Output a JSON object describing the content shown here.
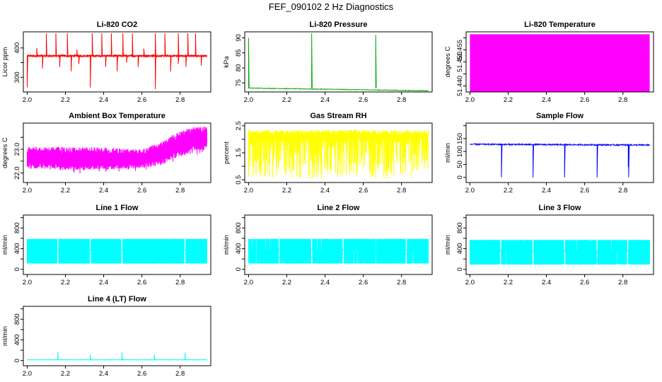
{
  "figure": {
    "title": "FEF_090102  2 Hz Diagnostics"
  },
  "chart_data": [
    {
      "type": "line",
      "title": "Li-820 CO2",
      "ylabel": "Licor ppm",
      "color": "#ff0000",
      "xlim": [
        1.98,
        2.96
      ],
      "ylim": [
        250,
        455
      ],
      "yticks": [
        300,
        350,
        400
      ],
      "yticklabels": [
        "300",
        "",
        "400"
      ],
      "pattern": {
        "kind": "spiky",
        "base": 373,
        "noise": 3,
        "n": 1200,
        "spikes_up": [
          [
            2.1,
            450
          ],
          [
            2.15,
            450
          ],
          [
            2.21,
            450
          ],
          [
            2.34,
            450
          ],
          [
            2.39,
            450
          ],
          [
            2.44,
            450
          ],
          [
            2.5,
            450
          ],
          [
            2.55,
            450
          ],
          [
            2.67,
            450
          ],
          [
            2.72,
            450
          ],
          [
            2.79,
            450
          ],
          [
            2.84,
            450
          ],
          [
            2.88,
            450
          ],
          [
            2.05,
            400
          ],
          [
            2.26,
            395
          ],
          [
            2.61,
            398
          ]
        ],
        "spikes_down": [
          [
            2.0,
            265
          ],
          [
            2.08,
            330
          ],
          [
            2.17,
            335
          ],
          [
            2.23,
            320
          ],
          [
            2.33,
            265
          ],
          [
            2.41,
            335
          ],
          [
            2.47,
            320
          ],
          [
            2.58,
            335
          ],
          [
            2.67,
            260
          ],
          [
            2.75,
            320
          ],
          [
            2.83,
            335
          ],
          [
            2.91,
            340
          ],
          [
            2.27,
            345
          ],
          [
            2.52,
            350
          ],
          [
            2.79,
            345
          ]
        ]
      }
    },
    {
      "type": "line",
      "title": "Li-820 Pressure",
      "ylabel": "kPa",
      "color": "#00aa00",
      "xlim": [
        1.98,
        2.96
      ],
      "ylim": [
        72,
        92
      ],
      "yticks": [
        75,
        80,
        85,
        90
      ],
      "yticklabels": [
        "75",
        "80",
        "85",
        "90"
      ],
      "pattern": {
        "kind": "spiky",
        "base": 73.3,
        "noise": 0.12,
        "n": 400,
        "drift": -0.9,
        "spikes_up": [
          [
            2.0,
            90
          ],
          [
            2.33,
            91.5
          ],
          [
            2.665,
            91
          ]
        ],
        "spikes_down": []
      }
    },
    {
      "type": "area",
      "title": "Li-820 Temperature",
      "ylabel": "degrees C",
      "color": "#ff00ff",
      "xlim": [
        1.98,
        2.96
      ],
      "ylim": [
        51.4375,
        51.4625
      ],
      "yticks": [
        51.44,
        51.445,
        51.45,
        51.455,
        51.46
      ],
      "yticklabels": [
        "51.440",
        "",
        "51.450",
        "51.455",
        ""
      ],
      "pattern": {
        "kind": "fill",
        "lo": 51.4375,
        "hi": 51.4615
      }
    },
    {
      "type": "line",
      "title": "Ambient Box Temperature",
      "ylabel": "degrees C",
      "color": "#ff00ff",
      "xlim": [
        1.98,
        2.96
      ],
      "ylim": [
        21.6,
        24.1
      ],
      "yticks": [
        22.0,
        22.5,
        23.0,
        23.5
      ],
      "yticklabels": [
        "22.0",
        "",
        "23.0",
        ""
      ],
      "pattern": {
        "kind": "band",
        "n": 1400,
        "env": [
          [
            2.0,
            22.2,
            23.1
          ],
          [
            2.3,
            22.1,
            23.1
          ],
          [
            2.6,
            22.2,
            23.0
          ],
          [
            2.7,
            22.3,
            23.3
          ],
          [
            2.76,
            22.6,
            23.6
          ],
          [
            2.85,
            22.8,
            23.9
          ],
          [
            2.94,
            23.0,
            24.0
          ]
        ]
      }
    },
    {
      "type": "line",
      "title": "Gas Stream RH",
      "ylabel": "percent",
      "color": "#ffff00",
      "xlim": [
        1.98,
        2.96
      ],
      "ylim": [
        0.4,
        2.6
      ],
      "yticks": [
        0.5,
        1.0,
        1.5,
        2.0,
        2.5
      ],
      "yticklabels": [
        "0.5",
        "",
        "1.5",
        "",
        "2.5"
      ],
      "pattern": {
        "kind": "rh",
        "n": 1500,
        "top": 2.1,
        "top_hi": 2.35,
        "dips_min": 0.55
      }
    },
    {
      "type": "line",
      "title": "Sample Flow",
      "ylabel": "ml/min",
      "color": "#0000ff",
      "xlim": [
        1.98,
        2.96
      ],
      "ylim": [
        -20,
        210
      ],
      "yticks": [
        0,
        50,
        100,
        150,
        200
      ],
      "yticklabels": [
        "0",
        "50",
        "100",
        "150",
        ""
      ],
      "pattern": {
        "kind": "spiky",
        "base": 128,
        "noise": 2.5,
        "n": 600,
        "drift": -3,
        "spikes_up": [],
        "spikes_down": [
          [
            2.165,
            0
          ],
          [
            2.33,
            0
          ],
          [
            2.495,
            0
          ],
          [
            2.665,
            0
          ],
          [
            2.83,
            0
          ],
          [
            2.828,
            40
          ]
        ]
      }
    },
    {
      "type": "line",
      "title": "Line 1 Flow",
      "ylabel": "ml/min",
      "color": "#00ffff",
      "xlim": [
        1.98,
        2.96
      ],
      "ylim": [
        -100,
        1050
      ],
      "yticks": [
        0,
        200,
        400,
        600,
        800,
        1000
      ],
      "yticklabels": [
        "0",
        "",
        "400",
        "",
        "800",
        ""
      ],
      "pattern": {
        "kind": "square",
        "lo": 110,
        "hi": 590,
        "n": 1400,
        "gaps": [
          [
            2.16,
            0.008
          ],
          [
            2.33,
            0.008
          ],
          [
            2.495,
            0.008
          ],
          [
            2.825,
            0.008
          ]
        ]
      }
    },
    {
      "type": "line",
      "title": "Line 2 Flow",
      "ylabel": "ml/min",
      "color": "#00ffff",
      "xlim": [
        1.98,
        2.96
      ],
      "ylim": [
        -100,
        1050
      ],
      "yticks": [
        0,
        200,
        400,
        600,
        800,
        1000
      ],
      "yticklabels": [
        "0",
        "",
        "400",
        "",
        "800",
        ""
      ],
      "pattern": {
        "kind": "square",
        "lo": 110,
        "hi": 590,
        "n": 1400,
        "gaps": [
          [
            2.02,
            0.003
          ],
          [
            2.04,
            0.004
          ],
          [
            2.06,
            0.003
          ],
          [
            2.09,
            0.003
          ],
          [
            2.11,
            0.003
          ],
          [
            2.16,
            0.007
          ],
          [
            2.33,
            0.008
          ],
          [
            2.36,
            0.003
          ],
          [
            2.38,
            0.003
          ],
          [
            2.42,
            0.003
          ],
          [
            2.495,
            0.008
          ],
          [
            2.52,
            0.003
          ],
          [
            2.55,
            0.003
          ],
          [
            2.57,
            0.003
          ],
          [
            2.6,
            0.003
          ],
          [
            2.665,
            0.004
          ],
          [
            2.825,
            0.008
          ],
          [
            2.86,
            0.003
          ],
          [
            2.88,
            0.003
          ],
          [
            2.91,
            0.003
          ]
        ]
      }
    },
    {
      "type": "line",
      "title": "Line 3 Flow",
      "ylabel": "ml/min",
      "color": "#00ffff",
      "xlim": [
        1.98,
        2.96
      ],
      "ylim": [
        -100,
        1050
      ],
      "yticks": [
        0,
        200,
        400,
        600,
        800,
        1000
      ],
      "yticklabels": [
        "0",
        "",
        "400",
        "",
        "800",
        ""
      ],
      "pattern": {
        "kind": "square",
        "lo": 90,
        "hi": 570,
        "n": 1400,
        "gaps": [
          [
            2.16,
            0.008
          ],
          [
            2.19,
            0.003
          ],
          [
            2.21,
            0.003
          ],
          [
            2.23,
            0.003
          ],
          [
            2.25,
            0.003
          ],
          [
            2.33,
            0.008
          ],
          [
            2.495,
            0.008
          ],
          [
            2.53,
            0.003
          ],
          [
            2.56,
            0.003
          ],
          [
            2.59,
            0.003
          ],
          [
            2.62,
            0.003
          ],
          [
            2.665,
            0.006
          ],
          [
            2.7,
            0.003
          ],
          [
            2.72,
            0.003
          ],
          [
            2.74,
            0.003
          ],
          [
            2.77,
            0.003
          ],
          [
            2.79,
            0.003
          ],
          [
            2.825,
            0.008
          ],
          [
            2.87,
            0.003
          ]
        ]
      }
    },
    {
      "type": "line",
      "title": "Line 4 (LT) Flow",
      "ylabel": "ml/min",
      "color": "#00ffff",
      "xlim": [
        1.98,
        2.96
      ],
      "ylim": [
        -100,
        1050
      ],
      "yticks": [
        0,
        200,
        400,
        600,
        800,
        1000
      ],
      "yticklabels": [
        "0",
        "",
        "400",
        "",
        "800",
        ""
      ],
      "pattern": {
        "kind": "spiky",
        "base": 15,
        "noise": 4,
        "n": 600,
        "spikes_up": [
          [
            2.16,
            165
          ],
          [
            2.33,
            110
          ],
          [
            2.495,
            160
          ],
          [
            2.665,
            115
          ],
          [
            2.825,
            155
          ]
        ],
        "spikes_down": []
      }
    }
  ],
  "shared_axis": {
    "xticks": [
      2.0,
      2.2,
      2.4,
      2.6,
      2.8
    ],
    "xticklabels": [
      "2.0",
      "2.2",
      "2.4",
      "2.6",
      "2.8"
    ]
  }
}
